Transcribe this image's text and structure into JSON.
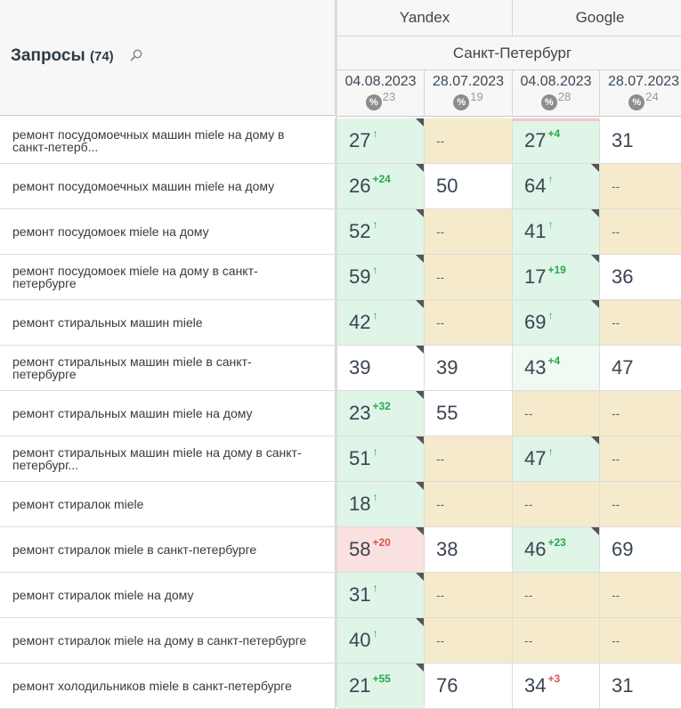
{
  "header": {
    "title": "Запросы",
    "count": "(74)",
    "engines": [
      "Yandex",
      "Google"
    ],
    "region": "Санкт-Петербург",
    "columns": [
      {
        "date": "04.08.2023",
        "pct_label": "%",
        "pct_count": "23"
      },
      {
        "date": "28.07.2023",
        "pct_label": "%",
        "pct_count": "19"
      },
      {
        "date": "04.08.2023",
        "pct_label": "%",
        "pct_count": "28"
      },
      {
        "date": "28.07.2023",
        "pct_label": "%",
        "pct_count": "24"
      }
    ]
  },
  "rows": [
    {
      "query": "ремонт посудомоечных машин miele на дому в санкт-петерб...",
      "cells": [
        {
          "value": "27",
          "delta": "↑",
          "dir": "up",
          "bg": "green",
          "corner": true
        },
        {
          "value": "--",
          "delta": "",
          "dir": "",
          "bg": "yellow",
          "corner": false
        },
        {
          "value": "27",
          "delta": "+4",
          "dir": "up",
          "bg": "green",
          "corner": false
        },
        {
          "value": "31",
          "delta": "",
          "dir": "",
          "bg": "white",
          "corner": false
        }
      ]
    },
    {
      "query": "ремонт посудомоечных машин miele на дому",
      "cells": [
        {
          "value": "26",
          "delta": "+24",
          "dir": "up",
          "bg": "green",
          "corner": true
        },
        {
          "value": "50",
          "delta": "",
          "dir": "",
          "bg": "white",
          "corner": false
        },
        {
          "value": "64",
          "delta": "↑",
          "dir": "up",
          "bg": "green",
          "corner": true
        },
        {
          "value": "--",
          "delta": "",
          "dir": "",
          "bg": "yellow",
          "corner": false
        }
      ]
    },
    {
      "query": "ремонт посудомоек miele на дому",
      "cells": [
        {
          "value": "52",
          "delta": "↑",
          "dir": "up",
          "bg": "green",
          "corner": true
        },
        {
          "value": "--",
          "delta": "",
          "dir": "",
          "bg": "yellow",
          "corner": false
        },
        {
          "value": "41",
          "delta": "↑",
          "dir": "up",
          "bg": "green",
          "corner": true
        },
        {
          "value": "--",
          "delta": "",
          "dir": "",
          "bg": "yellow",
          "corner": false
        }
      ]
    },
    {
      "query": "ремонт посудомоек miele на дому в санкт-петербурге",
      "cells": [
        {
          "value": "59",
          "delta": "↑",
          "dir": "up",
          "bg": "green",
          "corner": true
        },
        {
          "value": "--",
          "delta": "",
          "dir": "",
          "bg": "yellow",
          "corner": false
        },
        {
          "value": "17",
          "delta": "+19",
          "dir": "up",
          "bg": "green",
          "corner": true
        },
        {
          "value": "36",
          "delta": "",
          "dir": "",
          "bg": "white",
          "corner": false
        }
      ]
    },
    {
      "query": "ремонт стиральных машин miele",
      "cells": [
        {
          "value": "42",
          "delta": "↑",
          "dir": "up",
          "bg": "green",
          "corner": true
        },
        {
          "value": "--",
          "delta": "",
          "dir": "",
          "bg": "yellow",
          "corner": false
        },
        {
          "value": "69",
          "delta": "↑",
          "dir": "up",
          "bg": "green",
          "corner": true
        },
        {
          "value": "--",
          "delta": "",
          "dir": "",
          "bg": "yellow",
          "corner": false
        }
      ]
    },
    {
      "query": "ремонт стиральных машин miele в санкт-петербурге",
      "cells": [
        {
          "value": "39",
          "delta": "",
          "dir": "",
          "bg": "white",
          "corner": true
        },
        {
          "value": "39",
          "delta": "",
          "dir": "",
          "bg": "white",
          "corner": false
        },
        {
          "value": "43",
          "delta": "+4",
          "dir": "up",
          "bg": "lgreen",
          "corner": false
        },
        {
          "value": "47",
          "delta": "",
          "dir": "",
          "bg": "white",
          "corner": false
        }
      ]
    },
    {
      "query": "ремонт стиральных машин miele на дому",
      "cells": [
        {
          "value": "23",
          "delta": "+32",
          "dir": "up",
          "bg": "green",
          "corner": true
        },
        {
          "value": "55",
          "delta": "",
          "dir": "",
          "bg": "white",
          "corner": false
        },
        {
          "value": "--",
          "delta": "",
          "dir": "",
          "bg": "yellow",
          "corner": false
        },
        {
          "value": "--",
          "delta": "",
          "dir": "",
          "bg": "yellow",
          "corner": false
        }
      ]
    },
    {
      "query": "ремонт стиральных машин miele на дому в санкт-петербург...",
      "cells": [
        {
          "value": "51",
          "delta": "↑",
          "dir": "up",
          "bg": "green",
          "corner": true
        },
        {
          "value": "--",
          "delta": "",
          "dir": "",
          "bg": "yellow",
          "corner": false
        },
        {
          "value": "47",
          "delta": "↑",
          "dir": "up",
          "bg": "green",
          "corner": true
        },
        {
          "value": "--",
          "delta": "",
          "dir": "",
          "bg": "yellow",
          "corner": false
        }
      ]
    },
    {
      "query": "ремонт стиралок miele",
      "cells": [
        {
          "value": "18",
          "delta": "↑",
          "dir": "up",
          "bg": "green",
          "corner": true
        },
        {
          "value": "--",
          "delta": "",
          "dir": "",
          "bg": "yellow",
          "corner": false
        },
        {
          "value": "--",
          "delta": "",
          "dir": "",
          "bg": "yellow",
          "corner": false
        },
        {
          "value": "--",
          "delta": "",
          "dir": "",
          "bg": "yellow",
          "corner": false
        }
      ]
    },
    {
      "query": "ремонт стиралок miele в санкт-петербурге",
      "cells": [
        {
          "value": "58",
          "delta": "+20",
          "dir": "down",
          "bg": "red",
          "corner": true
        },
        {
          "value": "38",
          "delta": "",
          "dir": "",
          "bg": "white",
          "corner": false
        },
        {
          "value": "46",
          "delta": "+23",
          "dir": "up",
          "bg": "green",
          "corner": true
        },
        {
          "value": "69",
          "delta": "",
          "dir": "",
          "bg": "white",
          "corner": false
        }
      ]
    },
    {
      "query": "ремонт стиралок miele на дому",
      "cells": [
        {
          "value": "31",
          "delta": "↑",
          "dir": "up",
          "bg": "green",
          "corner": true
        },
        {
          "value": "--",
          "delta": "",
          "dir": "",
          "bg": "yellow",
          "corner": false
        },
        {
          "value": "--",
          "delta": "",
          "dir": "",
          "bg": "yellow",
          "corner": false
        },
        {
          "value": "--",
          "delta": "",
          "dir": "",
          "bg": "yellow",
          "corner": false
        }
      ]
    },
    {
      "query": "ремонт стиралок miele на дому в санкт-петербурге",
      "cells": [
        {
          "value": "40",
          "delta": "↑",
          "dir": "up",
          "bg": "green",
          "corner": true
        },
        {
          "value": "--",
          "delta": "",
          "dir": "",
          "bg": "yellow",
          "corner": false
        },
        {
          "value": "--",
          "delta": "",
          "dir": "",
          "bg": "yellow",
          "corner": false
        },
        {
          "value": "--",
          "delta": "",
          "dir": "",
          "bg": "yellow",
          "corner": false
        }
      ]
    },
    {
      "query": "ремонт холодильников miele в санкт-петербурге",
      "cells": [
        {
          "value": "21",
          "delta": "+55",
          "dir": "up",
          "bg": "green",
          "corner": true
        },
        {
          "value": "76",
          "delta": "",
          "dir": "",
          "bg": "white",
          "corner": false
        },
        {
          "value": "34",
          "delta": "+3",
          "dir": "down",
          "bg": "white",
          "corner": false
        },
        {
          "value": "31",
          "delta": "",
          "dir": "",
          "bg": "white",
          "corner": false
        }
      ]
    }
  ]
}
